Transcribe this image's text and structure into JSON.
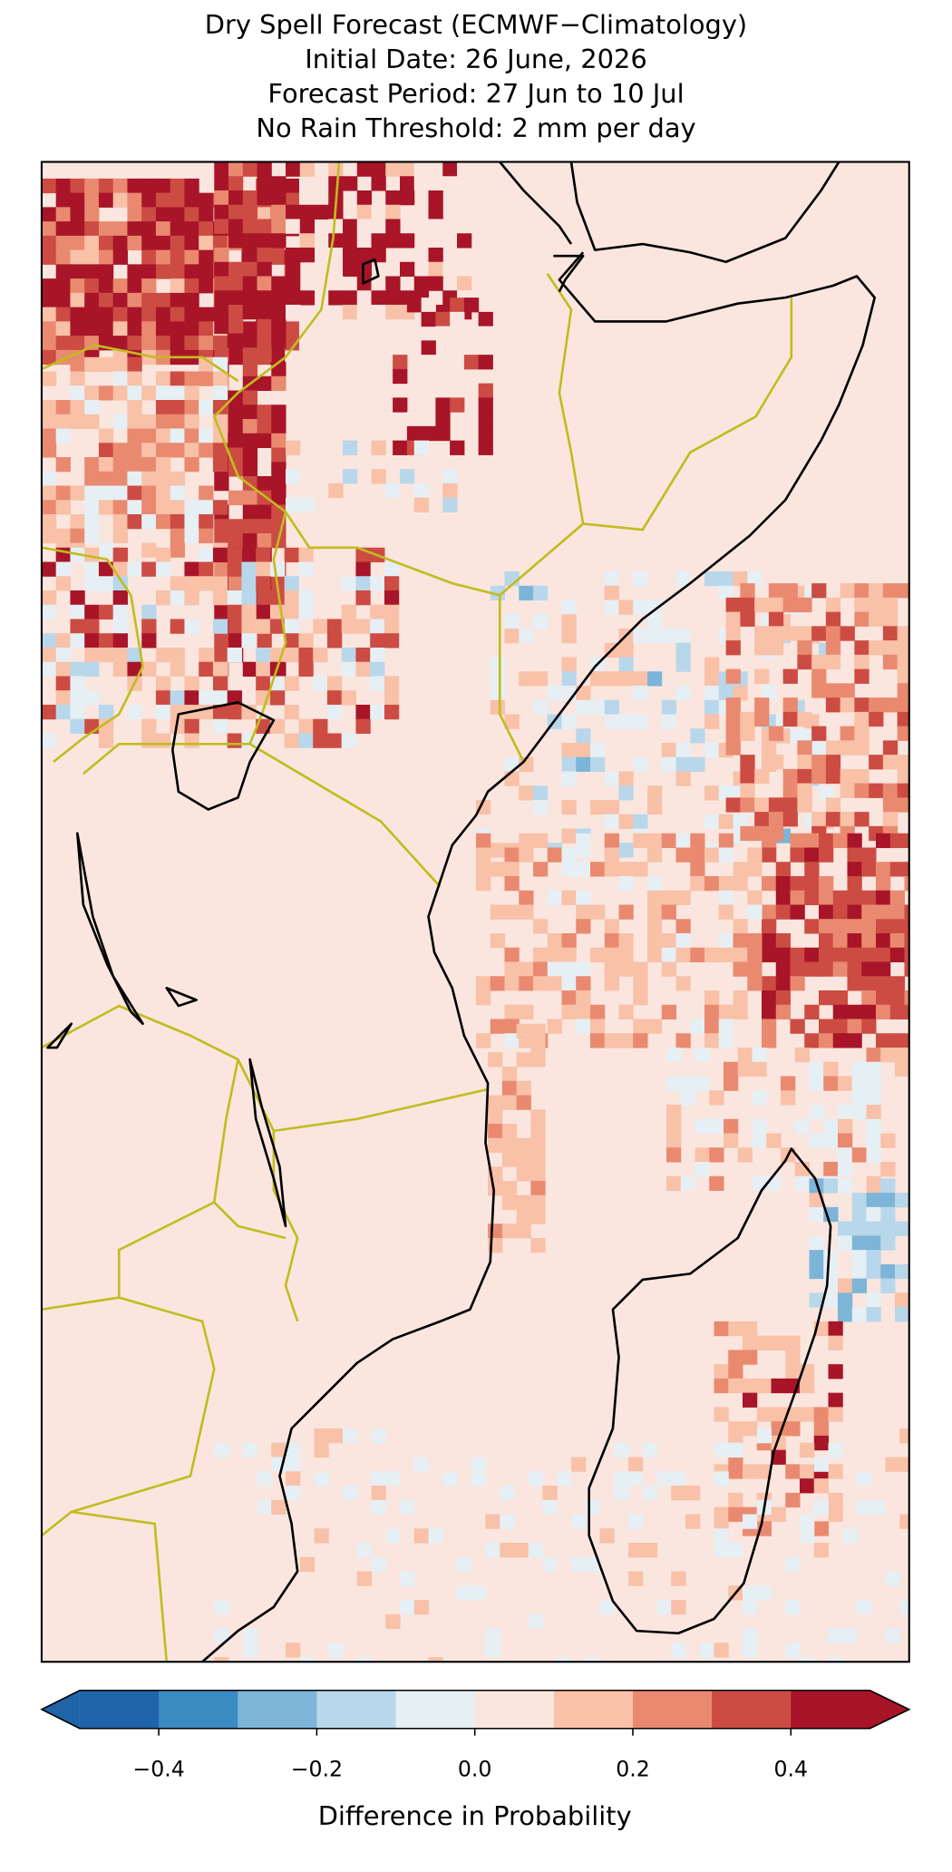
{
  "map": {
    "title": [
      "Dry Spell Forecast (ECMWF−Climatology)",
      "Initial Date: 26 June, 2026",
      "Forecast Period: 27 Jun to 10 Jul",
      "No Rain Threshold: 2 mm per day"
    ],
    "colorbar": {
      "label": "Difference in Probability",
      "boundaries": [
        -0.5,
        -0.4,
        -0.3,
        -0.2,
        -0.1,
        0,
        0.1,
        0.2,
        0.3,
        0.4,
        0.5
      ],
      "colors": [
        "#1f63a8",
        "#3a8bc2",
        "#7db5d8",
        "#b9d7ea",
        "#e6eff4",
        "#fae6df",
        "#f8c1a8",
        "#e98a70",
        "#cc4c43",
        "#a81528"
      ],
      "extend": "both",
      "ticks": [
        {
          "value": -0.4,
          "label": "−0.4"
        },
        {
          "value": -0.2,
          "label": "−0.2"
        },
        {
          "value": 0,
          "label": "0.0"
        },
        0.2,
        0.4
      ]
    }
  }
}
